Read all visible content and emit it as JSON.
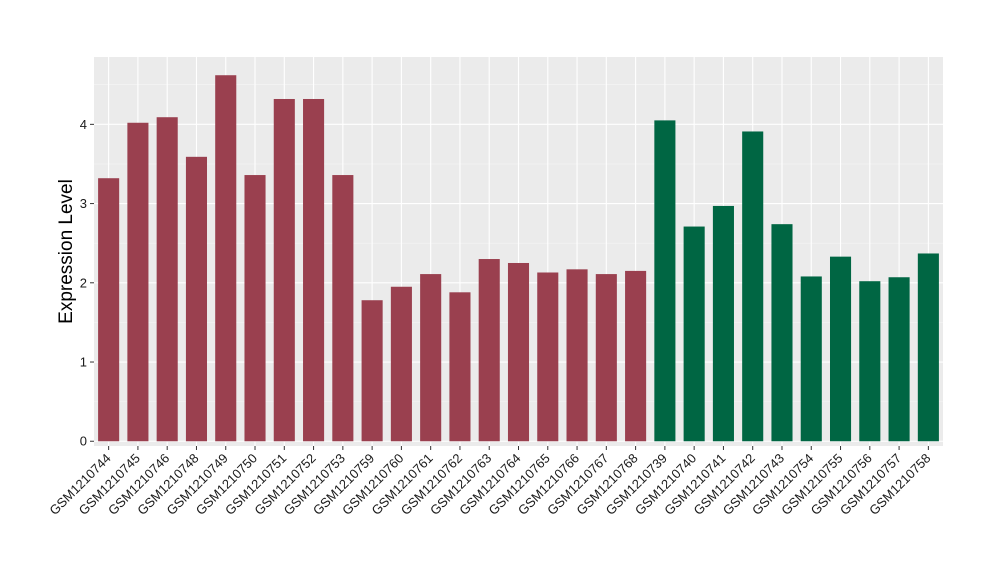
{
  "chart_data": {
    "type": "bar",
    "title": "",
    "xlabel": "",
    "ylabel": "Expression Level",
    "ylim": [
      -0.06,
      4.85
    ],
    "yticks": [
      0,
      1,
      2,
      3,
      4
    ],
    "grid": true,
    "legend": "none",
    "colors": {
      "panel_background": "#ebebeb",
      "grid_major": "#ffffff",
      "grid_minor": "#f5f5f5",
      "group_a": "#9a404f",
      "group_b": "#006643"
    },
    "categories": [
      "GSM1210744",
      "GSM1210745",
      "GSM1210746",
      "GSM1210748",
      "GSM1210749",
      "GSM1210750",
      "GSM1210751",
      "GSM1210752",
      "GSM1210753",
      "GSM1210759",
      "GSM1210760",
      "GSM1210761",
      "GSM1210762",
      "GSM1210763",
      "GSM1210764",
      "GSM1210765",
      "GSM1210766",
      "GSM1210767",
      "GSM1210768",
      "GSM1210739",
      "GSM1210740",
      "GSM1210741",
      "GSM1210742",
      "GSM1210743",
      "GSM1210754",
      "GSM1210755",
      "GSM1210756",
      "GSM1210757",
      "GSM1210758"
    ],
    "values": [
      3.32,
      4.02,
      4.09,
      3.59,
      4.62,
      3.36,
      4.32,
      4.32,
      3.36,
      1.78,
      1.95,
      2.11,
      1.88,
      2.3,
      2.25,
      2.13,
      2.17,
      2.11,
      2.15,
      4.05,
      2.71,
      2.97,
      3.91,
      2.74,
      2.08,
      2.33,
      2.02,
      2.07,
      2.37
    ],
    "groups": [
      "a",
      "a",
      "a",
      "a",
      "a",
      "a",
      "a",
      "a",
      "a",
      "a",
      "a",
      "a",
      "a",
      "a",
      "a",
      "a",
      "a",
      "a",
      "a",
      "b",
      "b",
      "b",
      "b",
      "b",
      "b",
      "b",
      "b",
      "b",
      "b"
    ]
  }
}
